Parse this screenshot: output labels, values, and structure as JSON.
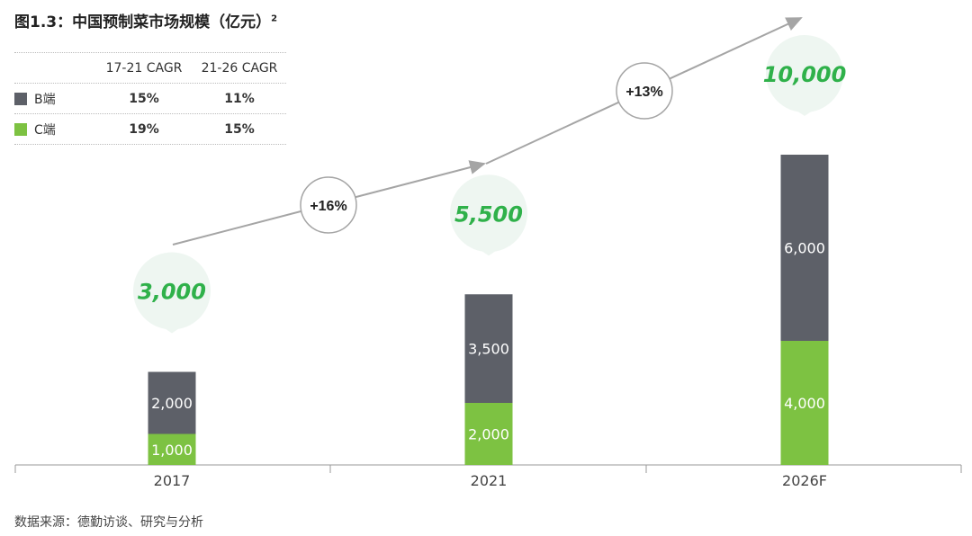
{
  "title": "图1.3：中国预制菜市场规模（亿元）",
  "title_sup": "2",
  "legend": {
    "headers": [
      "17-21 CAGR",
      "21-26 CAGR"
    ],
    "rows": [
      {
        "label": "B端",
        "color": "#5d6068",
        "cagr_17_21": "15%",
        "cagr_21_26": "11%"
      },
      {
        "label": "C端",
        "color": "#7dc242",
        "cagr_17_21": "19%",
        "cagr_21_26": "15%"
      }
    ]
  },
  "source": "数据来源：德勤访谈、研究与分析",
  "chart_data": {
    "type": "bar",
    "stacked": true,
    "title": "中国预制菜市场规模（亿元）",
    "categories": [
      "2017",
      "2021",
      "2026F"
    ],
    "series": [
      {
        "name": "C端",
        "color": "#7dc242",
        "values": [
          1000,
          2000,
          4000
        ],
        "labels": [
          "1,000",
          "2,000",
          "4,000"
        ]
      },
      {
        "name": "B端",
        "color": "#5d6068",
        "values": [
          2000,
          3500,
          6000
        ],
        "labels": [
          "2,000",
          "3,500",
          "6,000"
        ]
      }
    ],
    "totals": [
      3000,
      5500,
      10000
    ],
    "total_labels": [
      "3,000",
      "5,500",
      "10,000"
    ],
    "growth_annotations": [
      "+16%",
      "+13%"
    ],
    "ylim": [
      0,
      10000
    ]
  }
}
